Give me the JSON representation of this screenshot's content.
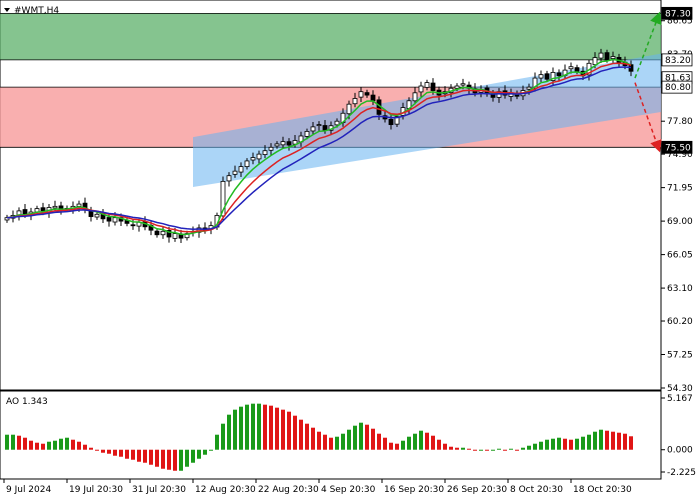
{
  "header": {
    "symbol_label": "#WMT,H4"
  },
  "ao_panel": {
    "label": "AO 1.343",
    "ticks": [
      5.167,
      0.0,
      -2.225
    ]
  },
  "price_axis": {
    "ticks": [
      {
        "v": 86.65,
        "t": "86.65"
      },
      {
        "v": 83.7,
        "t": "83.70"
      },
      {
        "v": 77.8,
        "t": "77.80"
      },
      {
        "v": 74.9,
        "t": "74.90"
      },
      {
        "v": 71.95,
        "t": "71.95"
      },
      {
        "v": 69.0,
        "t": "69.00"
      },
      {
        "v": 66.05,
        "t": "66.05"
      },
      {
        "v": 63.1,
        "t": "63.10"
      },
      {
        "v": 60.2,
        "t": "60.20"
      },
      {
        "v": 57.25,
        "t": "57.25"
      },
      {
        "v": 54.3,
        "t": "54.30"
      }
    ],
    "highlights": [
      {
        "v": 87.3,
        "t": "87.30",
        "style": "dark"
      },
      {
        "v": 83.2,
        "t": "83.20",
        "style": "light"
      },
      {
        "v": 81.63,
        "t": "81.63",
        "style": "light"
      },
      {
        "v": 80.8,
        "t": "80.80",
        "style": "light"
      },
      {
        "v": 75.5,
        "t": "75.50",
        "style": "dark"
      }
    ]
  },
  "time_axis": {
    "labels": [
      "9 Jul 2024",
      "19 Jul 20:30",
      "31 Jul 20:30",
      "12 Aug 20:30",
      "22 Aug 20:30",
      "4 Sep 20:30",
      "16 Sep 20:30",
      "26 Sep 20:30",
      "8 Oct 20:30",
      "18 Oct 20:30"
    ]
  },
  "colors": {
    "bull_candle": "#ffffff",
    "bear_candle": "#000000",
    "ma_green": "#22bb22",
    "ma_red": "#dd2222",
    "ma_blue": "#2222bb",
    "buy_zone": "#5cb06a",
    "sell_zone": "#f79b9b",
    "channel": "#66b3f0",
    "ao_up": "#1a9a1a",
    "ao_down": "#e01515"
  },
  "chart_data": {
    "type": "candlestick",
    "timeframe": "H4",
    "ylim": [
      54.3,
      88.3
    ],
    "zones": {
      "buy": [
        83.2,
        87.3
      ],
      "sell": [
        75.5,
        80.8
      ]
    },
    "channel": {
      "lower_start": [
        0,
        72.0
      ],
      "lower_end": [
        105,
        80.9
      ],
      "upper_start": [
        0,
        76.4
      ],
      "upper_end": [
        105,
        86.3
      ]
    },
    "forecast_arrows": [
      {
        "from": [
          108,
          81.6
        ],
        "to": [
          112,
          87.2
        ],
        "direction": "up"
      },
      {
        "from": [
          108,
          81.2
        ],
        "to": [
          112,
          75.3
        ],
        "direction": "down"
      }
    ],
    "close": [
      69.3,
      69.5,
      69.9,
      69.6,
      69.8,
      70.1,
      69.9,
      70.2,
      70.3,
      70.0,
      70.1,
      70.3,
      70.5,
      70.0,
      69.4,
      69.6,
      69.2,
      69.0,
      69.3,
      69.0,
      68.8,
      68.6,
      68.9,
      68.5,
      68.2,
      67.8,
      68.1,
      67.6,
      67.9,
      67.5,
      67.9,
      68.1,
      68.4,
      68.2,
      68.6,
      69.5,
      72.5,
      73.0,
      73.4,
      73.8,
      74.3,
      74.6,
      74.9,
      75.2,
      75.5,
      75.8,
      76.0,
      75.7,
      76.1,
      76.5,
      76.9,
      77.3,
      77.5,
      77.0,
      77.4,
      77.8,
      78.5,
      79.3,
      79.8,
      80.4,
      80.1,
      79.6,
      78.4,
      78.0,
      77.5,
      78.2,
      79.0,
      79.6,
      80.3,
      80.9,
      81.2,
      80.5,
      80.1,
      80.4,
      80.7,
      80.9,
      81.1,
      80.7,
      80.3,
      80.6,
      80.2,
      79.9,
      80.4,
      80.1,
      80.3,
      80.0,
      80.5,
      80.8,
      81.6,
      81.9,
      81.5,
      82.1,
      81.8,
      82.3,
      82.6,
      82.2,
      81.8,
      82.9,
      83.4,
      83.8,
      83.2,
      83.5,
      83.0,
      82.7,
      82.2
    ],
    "moving_averages": [
      {
        "color": "green",
        "period": "fast"
      },
      {
        "color": "red",
        "period": "medium"
      },
      {
        "color": "blue",
        "period": "slow"
      }
    ],
    "indicator": {
      "name": "AO",
      "last_value": 1.343,
      "ylim": [
        -2.225,
        5.167
      ],
      "values": [
        1.5,
        1.5,
        1.4,
        1.2,
        0.9,
        0.7,
        0.6,
        0.8,
        0.9,
        1.1,
        1.2,
        1.0,
        0.8,
        0.5,
        0.2,
        0.0,
        -0.3,
        -0.4,
        -0.6,
        -0.7,
        -0.9,
        -1.0,
        -1.2,
        -1.3,
        -1.5,
        -1.7,
        -1.9,
        -2.0,
        -2.1,
        -2.1,
        -1.7,
        -1.3,
        -0.9,
        -0.5,
        -0.1,
        1.5,
        2.6,
        3.5,
        4.0,
        4.3,
        4.5,
        4.6,
        4.6,
        4.5,
        4.4,
        4.2,
        4.0,
        3.8,
        3.4,
        3.0,
        2.6,
        2.2,
        1.8,
        1.5,
        1.2,
        1.3,
        1.6,
        2.0,
        2.4,
        2.7,
        2.5,
        2.1,
        1.6,
        1.2,
        0.7,
        0.6,
        0.9,
        1.3,
        1.6,
        1.9,
        1.7,
        1.4,
        1.0,
        0.6,
        0.3,
        0.2,
        0.2,
        0.1,
        0.0,
        0.0,
        -0.1,
        0.0,
        0.1,
        0.0,
        0.1,
        0.0,
        0.2,
        0.4,
        0.6,
        0.8,
        1.0,
        1.1,
        1.2,
        1.1,
        1.0,
        1.1,
        1.3,
        1.5,
        1.8,
        2.0,
        1.9,
        1.8,
        1.7,
        1.6,
        1.343
      ]
    }
  }
}
